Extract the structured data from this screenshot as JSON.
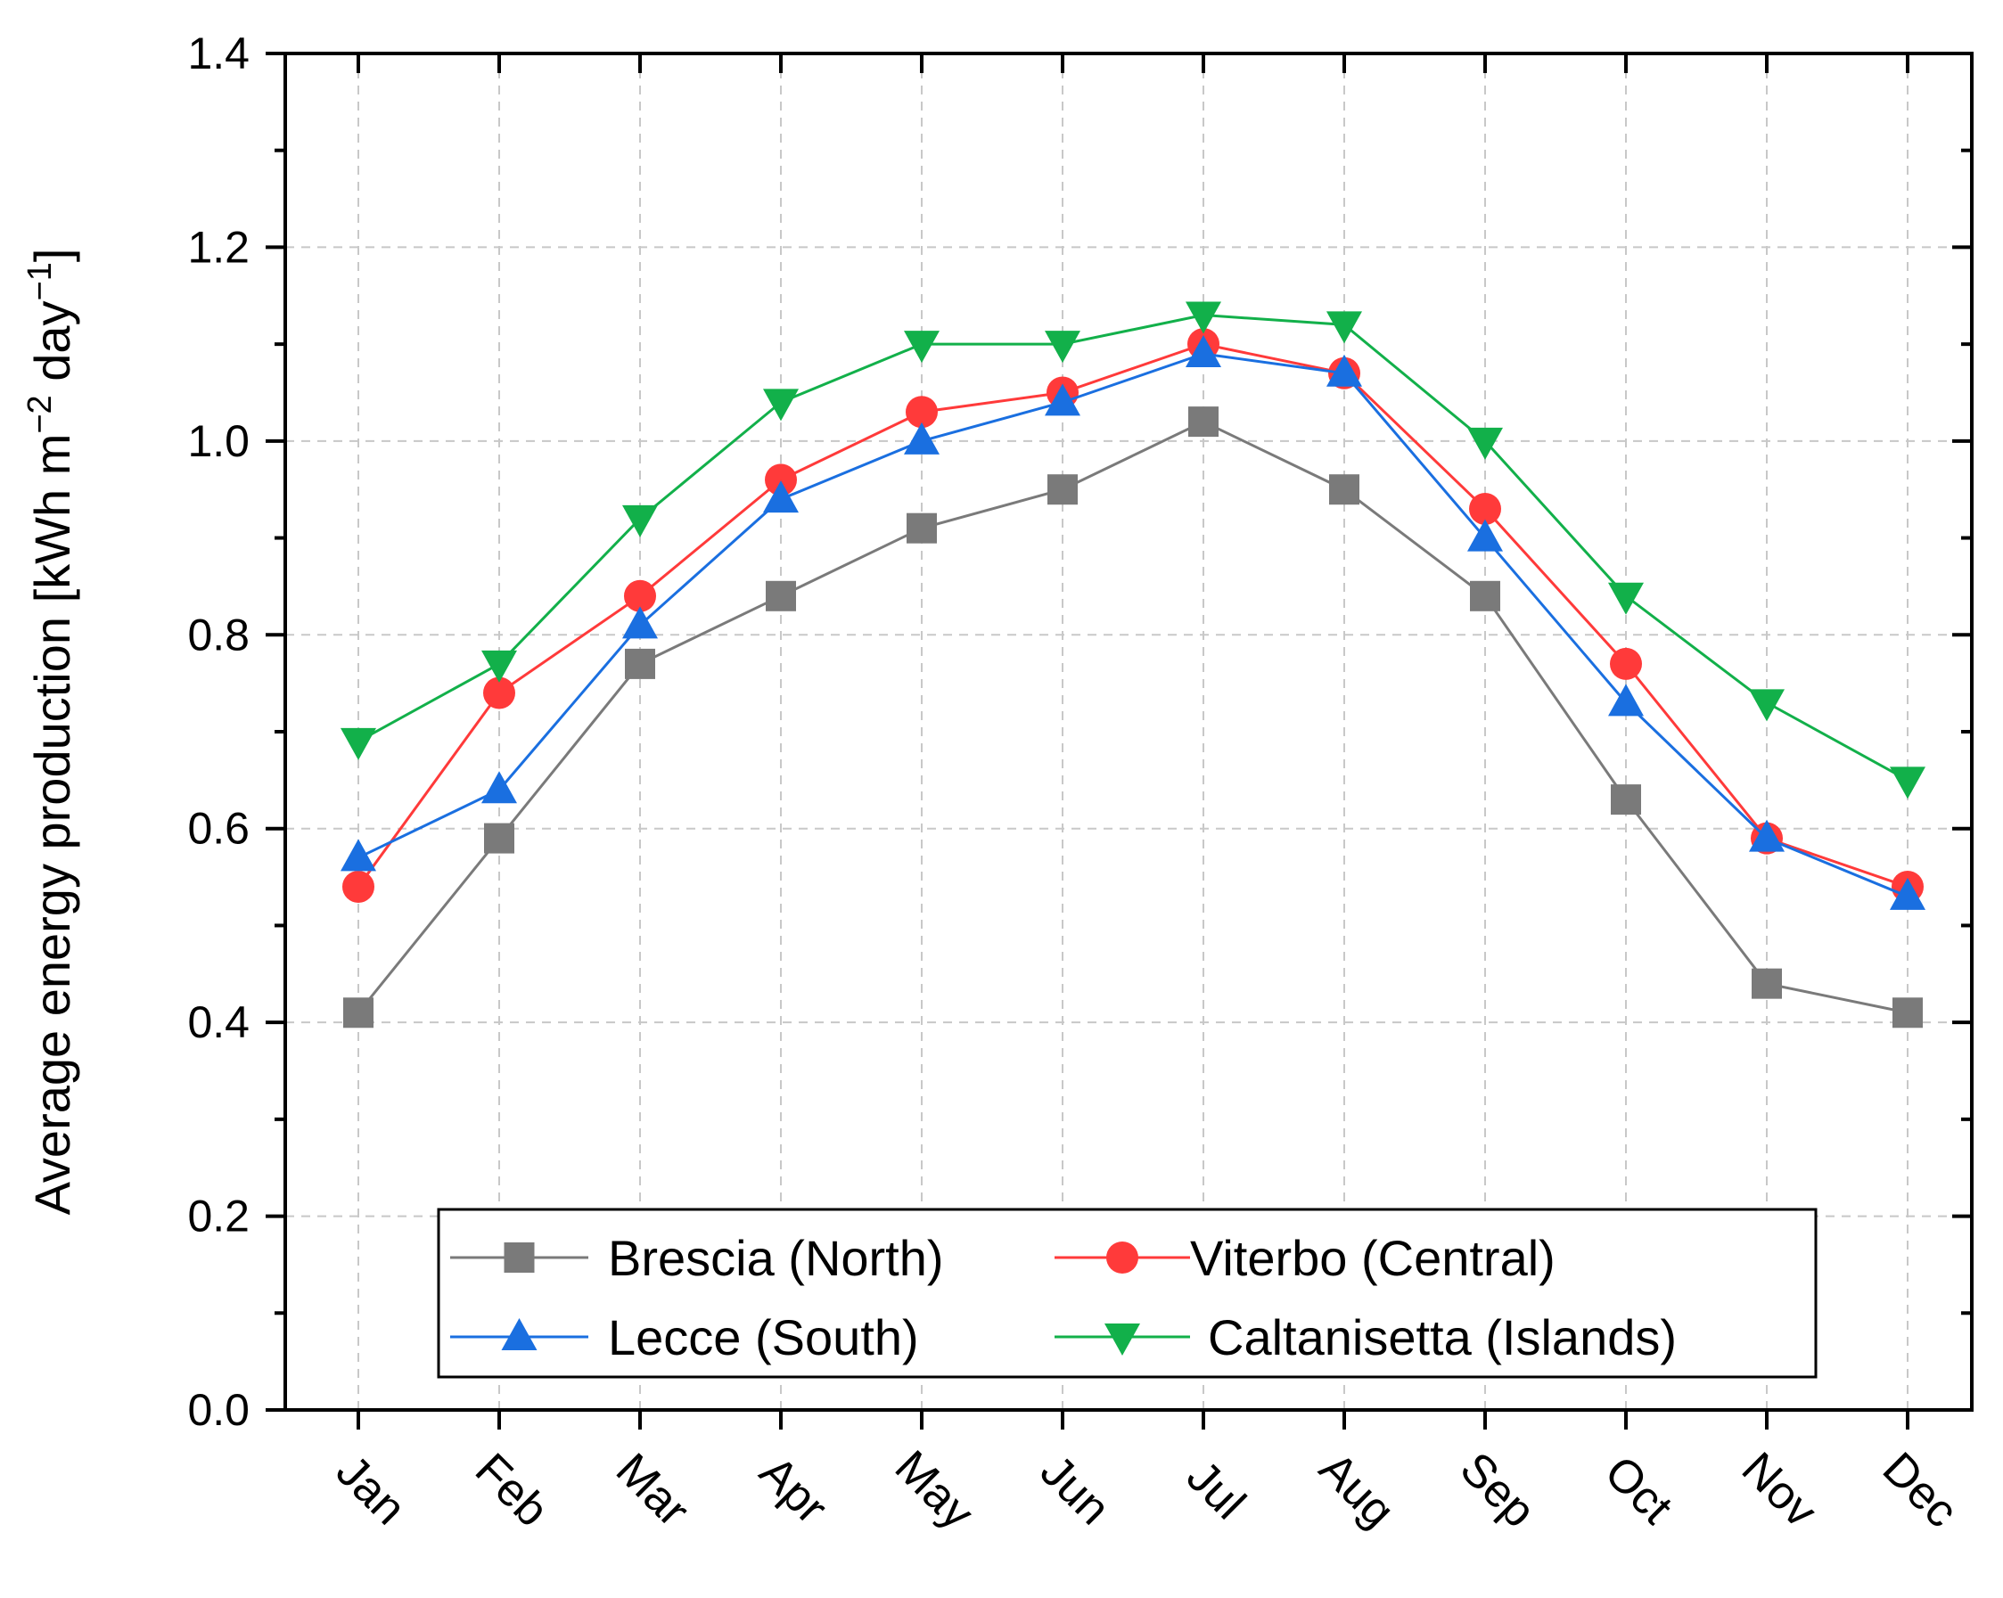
{
  "chart_data": {
    "type": "line",
    "title": "",
    "xlabel": "",
    "ylabel": {
      "main": "Average energy production [kWh m",
      "exp1": "−2",
      "mid": " day",
      "exp2": "−1",
      "end": "]"
    },
    "categories": [
      "Jan",
      "Feb",
      "Mar",
      "Apr",
      "May",
      "Jun",
      "Jul",
      "Aug",
      "Sep",
      "Oct",
      "Nov",
      "Dec"
    ],
    "ylim": [
      0.0,
      1.4
    ],
    "yticks": [
      "0.0",
      "0.2",
      "0.4",
      "0.6",
      "0.8",
      "1.0",
      "1.2",
      "1.4"
    ],
    "grid": true,
    "legend_position": "bottom-center",
    "series": [
      {
        "name": "Brescia (North)",
        "color": "#7a7a7a",
        "marker": "square",
        "values": [
          0.41,
          0.59,
          0.77,
          0.84,
          0.91,
          0.95,
          1.02,
          0.95,
          0.84,
          0.63,
          0.44,
          0.41
        ]
      },
      {
        "name": "Viterbo (Central)",
        "color": "#ff3a3a",
        "marker": "circle",
        "values": [
          0.54,
          0.74,
          0.84,
          0.96,
          1.03,
          1.05,
          1.1,
          1.07,
          0.93,
          0.77,
          0.59,
          0.54
        ]
      },
      {
        "name": "Lecce (South)",
        "color": "#1a6fe0",
        "marker": "triangle-up",
        "values": [
          0.57,
          0.64,
          0.81,
          0.94,
          1.0,
          1.04,
          1.09,
          1.07,
          0.9,
          0.73,
          0.59,
          0.53
        ]
      },
      {
        "name": "Caltanisetta (Islands)",
        "color": "#12b04a",
        "marker": "triangle-down",
        "values": [
          0.69,
          0.77,
          0.92,
          1.04,
          1.1,
          1.1,
          1.13,
          1.12,
          1.0,
          0.84,
          0.73,
          0.65
        ]
      }
    ]
  }
}
